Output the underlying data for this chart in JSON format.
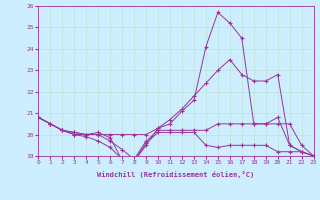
{
  "xlabel": "Windchill (Refroidissement éolien,°C)",
  "xlim": [
    0,
    23
  ],
  "ylim": [
    19,
    26
  ],
  "yticks": [
    19,
    20,
    21,
    22,
    23,
    24,
    25,
    26
  ],
  "xticks": [
    0,
    1,
    2,
    3,
    4,
    5,
    6,
    7,
    8,
    9,
    10,
    11,
    12,
    13,
    14,
    15,
    16,
    17,
    18,
    19,
    20,
    21,
    22,
    23
  ],
  "bg_color": "#cceeff",
  "line_color": "#993399",
  "grid_color": "#bbddcc",
  "series": [
    {
      "comment": "top curve - peaks at x=15 ~25.7, x=16 ~25.2, x=17~24.5, then drops",
      "x": [
        0,
        1,
        2,
        3,
        4,
        5,
        6,
        7,
        8,
        9,
        10,
        11,
        12,
        13,
        14,
        15,
        16,
        17,
        18,
        19,
        20,
        21,
        22,
        23
      ],
      "y": [
        20.8,
        20.5,
        20.2,
        20.1,
        20.0,
        20.1,
        19.85,
        18.8,
        18.75,
        19.5,
        20.3,
        20.5,
        21.1,
        21.6,
        24.1,
        25.7,
        25.2,
        24.5,
        20.5,
        20.5,
        20.8,
        19.5,
        19.2,
        19.0
      ]
    },
    {
      "x": [
        0,
        1,
        2,
        3,
        4,
        5,
        6,
        7,
        8,
        9,
        10,
        11,
        12,
        13,
        14,
        15,
        16,
        17,
        18,
        19,
        20,
        21,
        22,
        23
      ],
      "y": [
        20.8,
        20.5,
        20.2,
        20.1,
        20.0,
        20.0,
        20.0,
        20.0,
        20.0,
        20.0,
        20.3,
        20.7,
        21.2,
        21.8,
        22.4,
        23.0,
        23.5,
        22.8,
        22.5,
        22.5,
        22.8,
        19.5,
        19.2,
        19.0
      ]
    },
    {
      "x": [
        0,
        1,
        2,
        3,
        4,
        5,
        6,
        7,
        8,
        9,
        10,
        11,
        12,
        13,
        14,
        15,
        16,
        17,
        18,
        19,
        20,
        21,
        22,
        23
      ],
      "y": [
        20.8,
        20.5,
        20.2,
        20.0,
        20.0,
        20.0,
        19.7,
        19.3,
        18.85,
        19.7,
        20.2,
        20.2,
        20.2,
        20.2,
        20.2,
        20.5,
        20.5,
        20.5,
        20.5,
        20.5,
        20.5,
        20.5,
        19.5,
        19.0
      ]
    },
    {
      "x": [
        0,
        1,
        2,
        3,
        4,
        5,
        6,
        7,
        8,
        9,
        10,
        11,
        12,
        13,
        14,
        15,
        16,
        17,
        18,
        19,
        20,
        21,
        22,
        23
      ],
      "y": [
        20.8,
        20.5,
        20.2,
        20.0,
        19.9,
        19.7,
        19.4,
        18.85,
        18.75,
        19.6,
        20.1,
        20.1,
        20.1,
        20.1,
        19.5,
        19.4,
        19.5,
        19.5,
        19.5,
        19.5,
        19.2,
        19.2,
        19.2,
        19.0
      ]
    }
  ]
}
